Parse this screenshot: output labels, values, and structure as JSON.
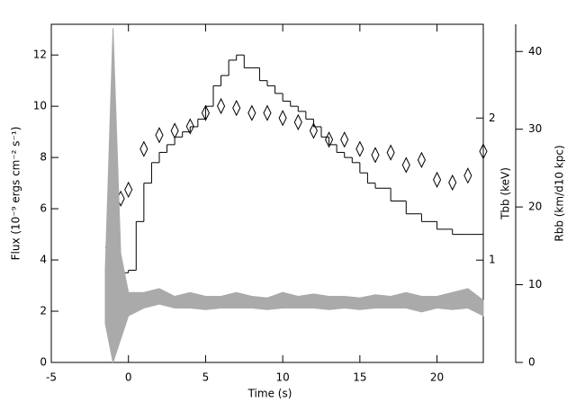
{
  "chart_data": {
    "type": "line",
    "xlabel": "Time (s)",
    "ylabel": "Flux (10⁻⁹ ergs cm⁻² s⁻¹)",
    "y2label": "Rbb (km/d10 kpc)",
    "y3label": "Tbb (keV)",
    "xlim": [
      -5,
      23
    ],
    "xticks": [
      -5,
      0,
      5,
      10,
      15,
      20
    ],
    "ylim": [
      0,
      13.2
    ],
    "yticks": [
      0,
      2,
      4,
      6,
      8,
      10,
      12
    ],
    "y2lim": [
      0,
      43.5
    ],
    "y2ticks": [
      0,
      10,
      20,
      30,
      40
    ],
    "y3lim": [
      0.607,
      3.16
    ],
    "y3ticks": [
      1,
      2
    ],
    "y3scale": "log",
    "series": [
      {
        "axis": "y",
        "style": "step",
        "color": "#000000",
        "bins": [
          -1.5,
          -1,
          -0.5,
          0,
          0.5,
          1,
          1.5,
          2,
          2.5,
          3,
          3.5,
          4,
          4.5,
          5,
          5.5,
          6,
          6.5,
          7,
          7.5,
          8,
          8.5,
          9,
          9.5,
          10,
          10.5,
          11,
          11.5,
          12,
          12.5,
          13,
          13.5,
          14,
          14.5,
          15,
          15.5,
          16,
          17,
          18,
          19,
          20,
          21,
          22,
          23
        ],
        "values": [
          4.5,
          2.5,
          3.5,
          3.6,
          5.5,
          7.0,
          7.8,
          8.2,
          8.5,
          8.8,
          9.0,
          9.2,
          9.5,
          10.0,
          10.8,
          11.2,
          11.8,
          12.0,
          11.5,
          11.5,
          11.0,
          10.8,
          10.5,
          10.2,
          10.0,
          9.8,
          9.5,
          9.2,
          8.8,
          8.5,
          8.2,
          8.0,
          7.8,
          7.4,
          7.0,
          6.8,
          6.3,
          5.8,
          5.5,
          5.2,
          5.0,
          5.0
        ]
      },
      {
        "axis": "y3",
        "style": "diamond",
        "color": "#000000",
        "x": [
          -1,
          -0.5,
          0,
          1,
          2,
          3,
          4,
          5,
          6,
          7,
          8,
          9,
          10,
          11,
          12,
          13,
          14,
          15,
          16,
          17,
          18,
          19,
          20,
          21,
          22,
          23
        ],
        "values": [
          1.24,
          1.35,
          1.41,
          1.72,
          1.84,
          1.88,
          1.92,
          2.05,
          2.12,
          2.1,
          2.05,
          2.05,
          2.0,
          1.96,
          1.88,
          1.8,
          1.8,
          1.72,
          1.67,
          1.69,
          1.59,
          1.63,
          1.48,
          1.46,
          1.51,
          1.7
        ]
      },
      {
        "axis": "y2",
        "style": "band",
        "color": "#aaaaaa",
        "x": [
          -1.5,
          -1,
          -0.5,
          0,
          1,
          2,
          3,
          4,
          5,
          6,
          7,
          8,
          9,
          10,
          11,
          12,
          13,
          14,
          15,
          16,
          17,
          18,
          19,
          20,
          21,
          22,
          23
        ],
        "lower": [
          5,
          0,
          3,
          6,
          7,
          7.5,
          7,
          7,
          6.8,
          7,
          7,
          7,
          6.8,
          7,
          7,
          7,
          6.8,
          7,
          6.8,
          7,
          7,
          7,
          6.5,
          7,
          6.8,
          7,
          6
        ],
        "upper": [
          12,
          43,
          14,
          9,
          9,
          9.5,
          8.5,
          9,
          8.5,
          8.5,
          9,
          8.5,
          8.3,
          9,
          8.5,
          8.8,
          8.5,
          8.5,
          8.3,
          8.7,
          8.5,
          9,
          8.5,
          8.5,
          9,
          9.5,
          8
        ]
      }
    ]
  }
}
